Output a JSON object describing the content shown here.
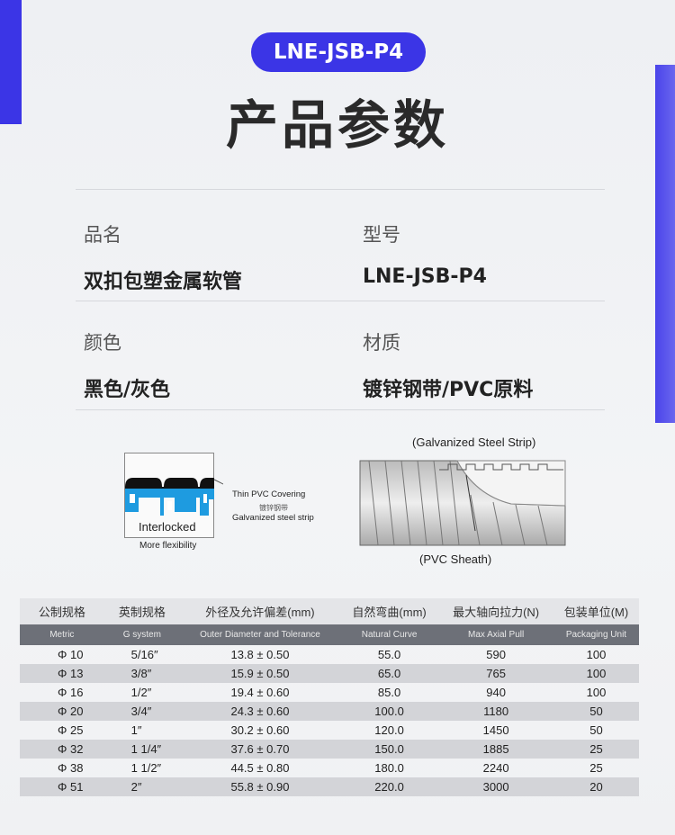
{
  "header": {
    "badge": "LNE-JSB-P4",
    "title": "产品参数"
  },
  "params": [
    {
      "label": "品名",
      "value": "双扣包塑金属软管"
    },
    {
      "label": "型号",
      "value": "LNE-JSB-P4"
    },
    {
      "label": "颜色",
      "value": "黑色/灰色"
    },
    {
      "label": "材质",
      "value": "镀锌钢带/PVC原料"
    }
  ],
  "diagram_left": {
    "pvc": "Thin PVC Covering",
    "cn": "镀锌钢带",
    "steel": "Galvanized steel strip",
    "box": "Interlocked",
    "caption": "More flexibility"
  },
  "diagram_right": {
    "top": "(Galvanized Steel Strip)",
    "bottom": "(PVC Sheath)"
  },
  "colors": {
    "accent": "#3b35e6",
    "steel_blue": "#1e9be0"
  },
  "table": {
    "headers_cn": [
      "公制规格",
      "英制规格",
      "外径及允许偏差(mm)",
      "自然弯曲(mm)",
      "最大轴向拉力(N)",
      "包装单位(M)"
    ],
    "headers_en": [
      "Metric",
      "G system",
      "Outer Diameter and Tolerance",
      "Natural Curve",
      "Max Axial Pull",
      "Packaging Unit"
    ],
    "rows": [
      [
        "Φ 10",
        "5/16″",
        "13.8 ± 0.50",
        "55.0",
        "590",
        "100"
      ],
      [
        "Φ 13",
        "3/8″",
        "15.9 ± 0.50",
        "65.0",
        "765",
        "100"
      ],
      [
        "Φ 16",
        "1/2″",
        "19.4 ± 0.60",
        "85.0",
        "940",
        "100"
      ],
      [
        "Φ 20",
        "3/4″",
        "24.3 ± 0.60",
        "100.0",
        "1180",
        "50"
      ],
      [
        "Φ 25",
        "1″",
        "30.2 ± 0.60",
        "120.0",
        "1450",
        "50"
      ],
      [
        "Φ 32",
        "1 1/4″",
        "37.6 ± 0.70",
        "150.0",
        "1885",
        "25"
      ],
      [
        "Φ 38",
        "1 1/2″",
        "44.5 ± 0.80",
        "180.0",
        "2240",
        "25"
      ],
      [
        "Φ 51",
        "2″",
        "55.8 ± 0.90",
        "220.0",
        "3000",
        "20"
      ]
    ]
  }
}
